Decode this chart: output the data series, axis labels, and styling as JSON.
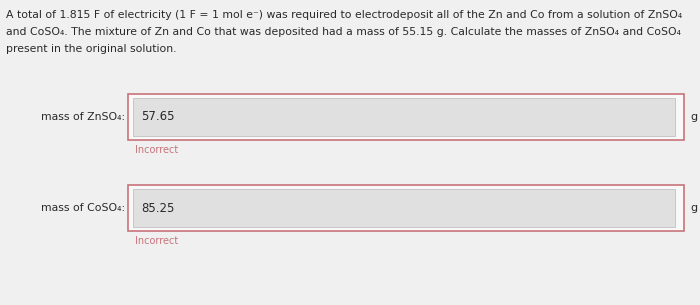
{
  "background_color": "#f0f0f0",
  "para_line1": "A total of 1.815 F of electricity (1 F = 1 mol e⁻) was required to electrodeposit all of the Zn and Co from a solution of ZnSO₄",
  "para_line2": "and CoSO₄. The mixture of Zn and Co that was deposited had a mass of 55.15 g. Calculate the masses of ZnSO₄ and CoSO₄",
  "para_line3": "present in the original solution.",
  "label1": "mass of ZnSO₄:",
  "label2": "mass of CoSO₄:",
  "value1": "57.65",
  "value2": "85.25",
  "incorrect_text": "Incorrect",
  "unit": "g",
  "outer_border_color": "#c8737a",
  "inner_box_color": "#e0e0e0",
  "inner_border_color": "#c0c0c0",
  "white_bg": "#f8f8f8",
  "text_color": "#2a2a2a",
  "incorrect_color": "#c8737a",
  "font_size_para": 7.8,
  "font_size_label": 7.8,
  "font_size_value": 8.5,
  "font_size_incorrect": 7.0,
  "font_size_unit": 8.0
}
